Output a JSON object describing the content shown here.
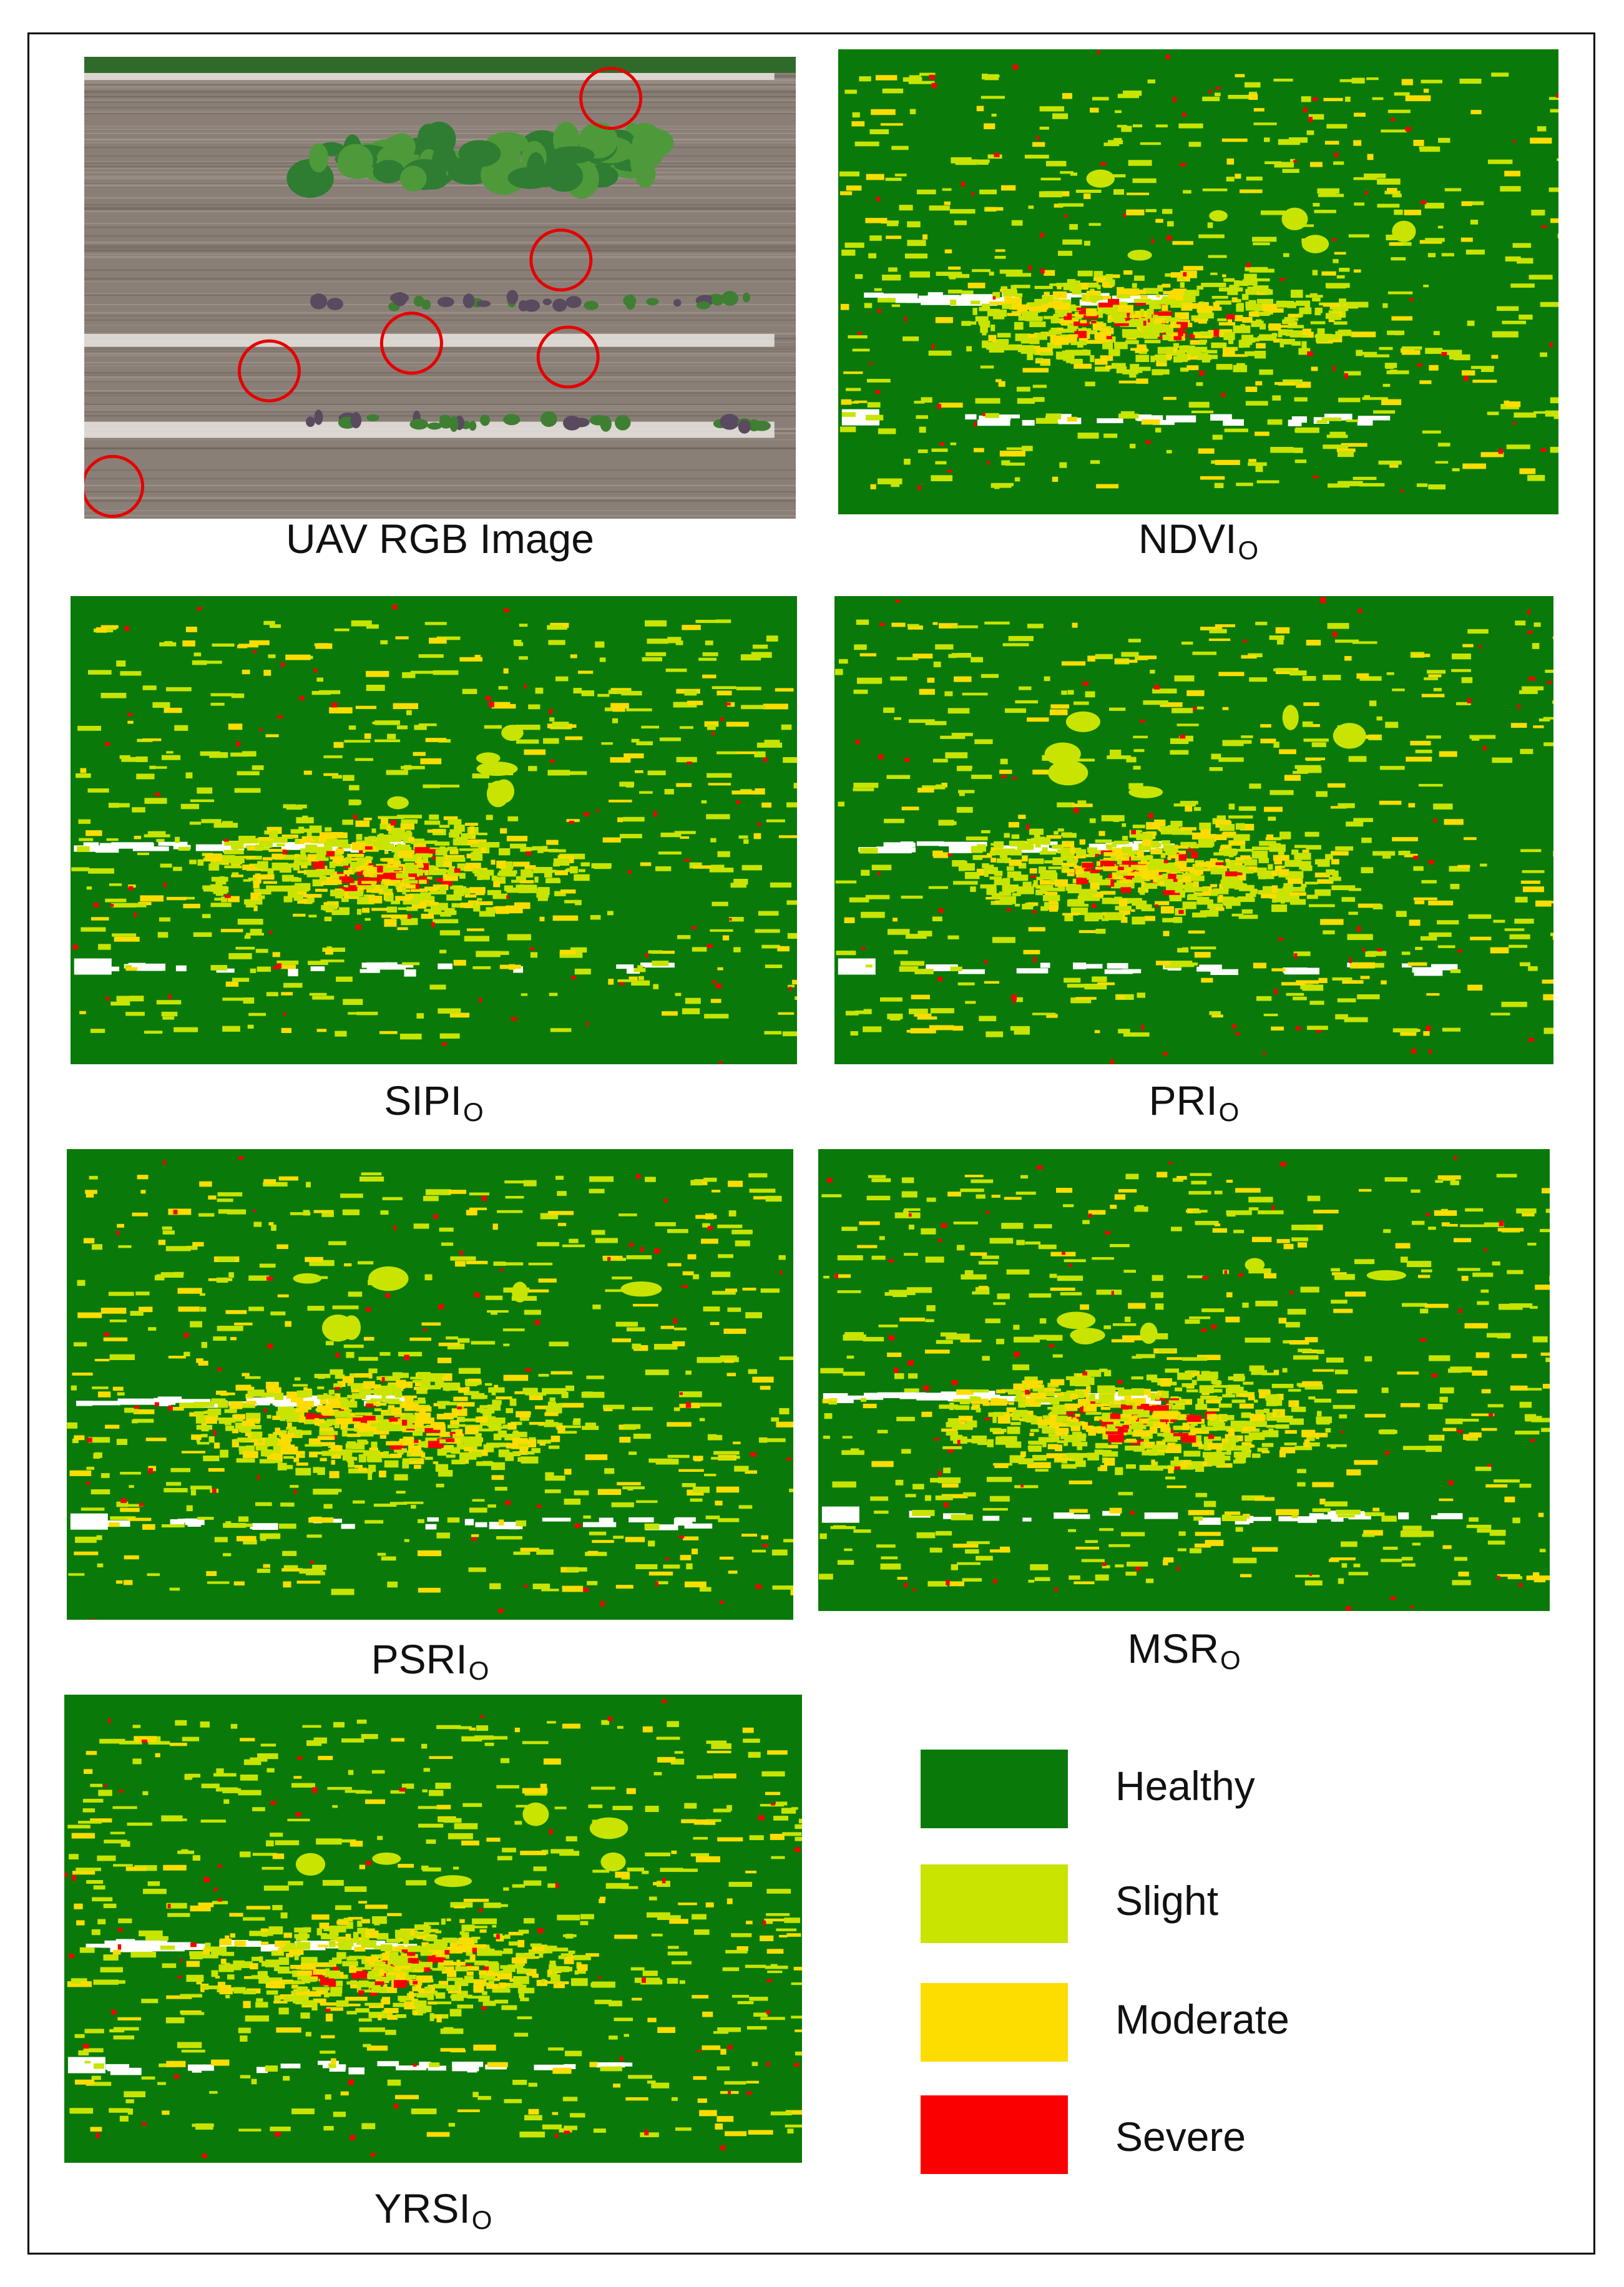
{
  "colors": {
    "healthy": "#097a09",
    "slight": "#c8e400",
    "moderate": "#fddc00",
    "severe": "#fb0000",
    "bare_soil": "#ffffff",
    "soil_tone": "#8a7f77",
    "circle_marker": "#e60000"
  },
  "panels": [
    {
      "id": "rgb",
      "caption_main": "UAV RGB Image",
      "caption_sub": ""
    },
    {
      "id": "ndvi",
      "caption_main": "NDVI",
      "caption_sub": "O"
    },
    {
      "id": "sipi",
      "caption_main": "SIPI",
      "caption_sub": "O"
    },
    {
      "id": "pri",
      "caption_main": "PRI",
      "caption_sub": "O"
    },
    {
      "id": "psri",
      "caption_main": "PSRI",
      "caption_sub": "O"
    },
    {
      "id": "msr",
      "caption_main": "MSR",
      "caption_sub": "O"
    },
    {
      "id": "yrsi",
      "caption_main": "YRSI",
      "caption_sub": "O"
    }
  ],
  "legend": [
    {
      "label": "Healthy",
      "color": "#097a09"
    },
    {
      "label": "Slight",
      "color": "#c8e400"
    },
    {
      "label": "Moderate",
      "color": "#fddc00"
    },
    {
      "label": "Severe",
      "color": "#fb0000"
    }
  ]
}
